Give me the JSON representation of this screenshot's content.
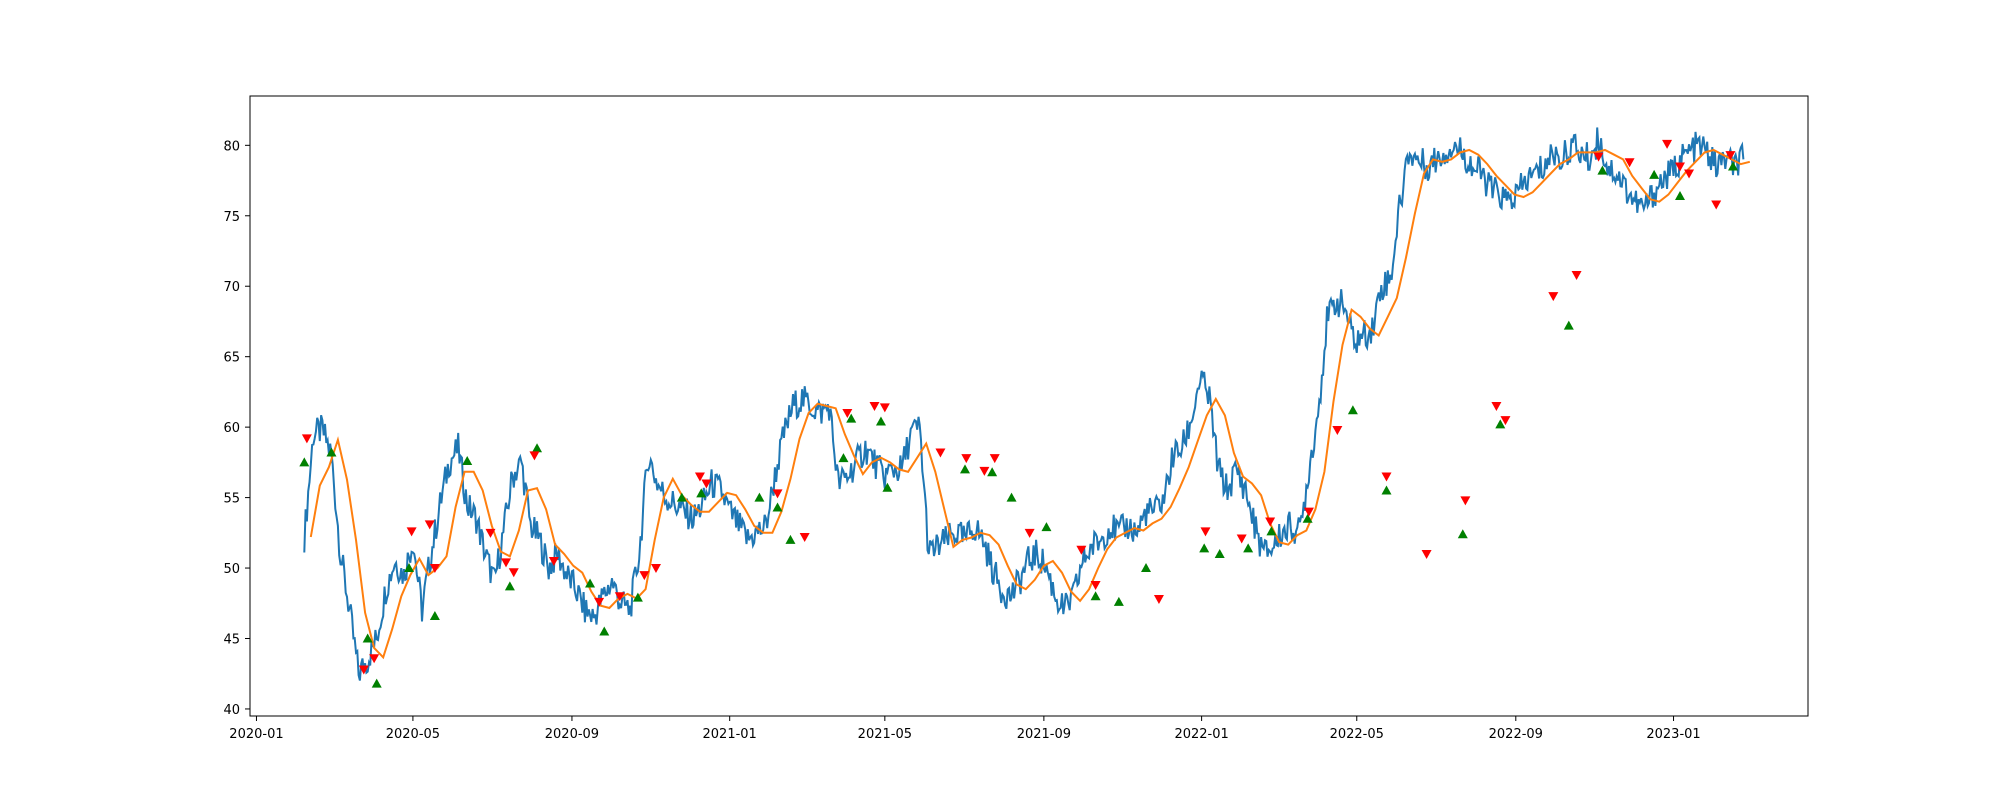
{
  "chart_data": {
    "type": "line",
    "title": "",
    "xlabel": "",
    "ylabel": "",
    "xlim": [
      "2019-12-27",
      "2023-04-15"
    ],
    "ylim": [
      39.5,
      83.5
    ],
    "grid": false,
    "legend": "none",
    "x_ticks": [
      "2020-01",
      "2020-05",
      "2020-09",
      "2021-01",
      "2021-05",
      "2021-09",
      "2022-01",
      "2022-05",
      "2022-09",
      "2023-01"
    ],
    "y_ticks": [
      40,
      45,
      50,
      55,
      60,
      65,
      70,
      75,
      80
    ],
    "colors": {
      "price": "#1f77b4",
      "moving_average": "#ff7f0e",
      "buy_marker": "#008000",
      "sell_marker": "#ff0000"
    },
    "series": [
      {
        "role": "price",
        "x": [
          "2020-02-07",
          "2020-02-14",
          "2020-02-21",
          "2020-02-28",
          "2020-03-06",
          "2020-03-13",
          "2020-03-20",
          "2020-03-27",
          "2020-04-03",
          "2020-04-10",
          "2020-04-17",
          "2020-04-24",
          "2020-05-01",
          "2020-05-08",
          "2020-05-15",
          "2020-05-22",
          "2020-05-29",
          "2020-06-05",
          "2020-06-12",
          "2020-06-19",
          "2020-06-26",
          "2020-07-03",
          "2020-07-10",
          "2020-07-17",
          "2020-07-24",
          "2020-07-31",
          "2020-08-07",
          "2020-08-14",
          "2020-08-21",
          "2020-08-28",
          "2020-09-04",
          "2020-09-11",
          "2020-09-18",
          "2020-09-25",
          "2020-10-02",
          "2020-10-09",
          "2020-10-16",
          "2020-10-23",
          "2020-10-30",
          "2020-11-06",
          "2020-11-13",
          "2020-11-20",
          "2020-11-27",
          "2020-12-04",
          "2020-12-11",
          "2020-12-18",
          "2020-12-25",
          "2021-01-01",
          "2021-01-08",
          "2021-01-15",
          "2021-01-22",
          "2021-01-29",
          "2021-02-05",
          "2021-02-12",
          "2021-02-19",
          "2021-02-26",
          "2021-03-05",
          "2021-03-12",
          "2021-03-19",
          "2021-03-26",
          "2021-04-02",
          "2021-04-09",
          "2021-04-16",
          "2021-04-23",
          "2021-04-30",
          "2021-05-07",
          "2021-05-14",
          "2021-05-21",
          "2021-05-28",
          "2021-06-04",
          "2021-06-11",
          "2021-06-18",
          "2021-06-25",
          "2021-07-02",
          "2021-07-09",
          "2021-07-16",
          "2021-07-23",
          "2021-07-30",
          "2021-08-06",
          "2021-08-13",
          "2021-08-20",
          "2021-08-27",
          "2021-09-03",
          "2021-09-10",
          "2021-09-17",
          "2021-09-24",
          "2021-10-01",
          "2021-10-08",
          "2021-10-15",
          "2021-10-22",
          "2021-10-29",
          "2021-11-05",
          "2021-11-12",
          "2021-11-19",
          "2021-11-26",
          "2021-12-03",
          "2021-12-10",
          "2021-12-17",
          "2021-12-24",
          "2021-12-31",
          "2022-01-07",
          "2022-01-14",
          "2022-01-21",
          "2022-01-28",
          "2022-02-04",
          "2022-02-11",
          "2022-02-18",
          "2022-02-25",
          "2022-03-04",
          "2022-03-11",
          "2022-03-18",
          "2022-03-25",
          "2022-04-01",
          "2022-04-08",
          "2022-04-15",
          "2022-04-22",
          "2022-04-29",
          "2022-05-06",
          "2022-05-13",
          "2022-05-20",
          "2022-05-27",
          "2022-06-03",
          "2022-06-10",
          "2022-06-17",
          "2022-06-24",
          "2022-07-01",
          "2022-07-08",
          "2022-07-15",
          "2022-07-22",
          "2022-07-29",
          "2022-08-05",
          "2022-08-12",
          "2022-08-19",
          "2022-08-26",
          "2022-09-02",
          "2022-09-09",
          "2022-09-16",
          "2022-09-23",
          "2022-09-30",
          "2022-10-07",
          "2022-10-14",
          "2022-10-21",
          "2022-10-28",
          "2022-11-04",
          "2022-11-11",
          "2022-11-18",
          "2022-11-25",
          "2022-12-02",
          "2022-12-09",
          "2022-12-16",
          "2022-12-23",
          "2022-12-30",
          "2023-01-06",
          "2023-01-13",
          "2023-01-20",
          "2023-01-27",
          "2023-02-03",
          "2023-02-10",
          "2023-02-17",
          "2023-02-24"
        ],
        "values": [
          52.2,
          59.5,
          59.8,
          58.0,
          51.0,
          47.0,
          42.5,
          43.5,
          45.0,
          48.5,
          50.5,
          49.5,
          52.0,
          47.0,
          51.0,
          54.5,
          57.5,
          58.5,
          54.5,
          53.5,
          51.0,
          49.0,
          52.5,
          56.5,
          57.5,
          53.0,
          52.0,
          50.0,
          51.0,
          49.5,
          48.5,
          47.0,
          46.5,
          48.0,
          49.0,
          47.5,
          47.0,
          51.0,
          58.0,
          56.0,
          55.0,
          54.5,
          54.0,
          53.5,
          54.5,
          56.0,
          55.5,
          54.0,
          53.0,
          52.0,
          52.5,
          53.0,
          56.5,
          59.5,
          61.5,
          62.0,
          61.5,
          61.0,
          61.5,
          56.0,
          56.5,
          57.5,
          58.5,
          57.5,
          56.5,
          57.0,
          57.0,
          59.5,
          60.0,
          51.0,
          51.5,
          52.0,
          52.5,
          52.0,
          53.0,
          52.0,
          50.0,
          48.5,
          48.0,
          49.0,
          50.5,
          51.0,
          50.0,
          48.0,
          47.0,
          48.0,
          50.5,
          51.5,
          52.0,
          53.0,
          52.5,
          53.0,
          52.5,
          54.0,
          54.0,
          55.0,
          58.0,
          58.5,
          60.5,
          63.5,
          62.0,
          57.0,
          55.5,
          57.0,
          55.5,
          53.0,
          51.0,
          51.5,
          52.5,
          53.0,
          52.5,
          57.0,
          61.0,
          67.5,
          69.0,
          68.5,
          66.0,
          66.5,
          67.0,
          70.0,
          70.5,
          75.5,
          79.5,
          79.0,
          78.5,
          79.0,
          79.5,
          80.0,
          79.5,
          78.5,
          78.0,
          77.0,
          76.5,
          76.0,
          76.5,
          77.5,
          78.0,
          78.5,
          79.5,
          79.0,
          80.0,
          79.5,
          79.0,
          80.5,
          78.5,
          78.0,
          77.0,
          76.0,
          75.5,
          76.5,
          77.5,
          78.0,
          79.0,
          79.5,
          80.0,
          79.5,
          78.5,
          79.0,
          78.5,
          79.0
        ],
        "step_days": 7
      }
    ],
    "buy_signals": [
      {
        "x": "2020-02-07",
        "y": 57.5
      },
      {
        "x": "2020-02-28",
        "y": 58.2
      },
      {
        "x": "2020-03-27",
        "y": 45.0
      },
      {
        "x": "2020-04-03",
        "y": 41.8
      },
      {
        "x": "2020-04-28",
        "y": 50.0
      },
      {
        "x": "2020-05-18",
        "y": 46.6
      },
      {
        "x": "2020-06-12",
        "y": 57.6
      },
      {
        "x": "2020-07-15",
        "y": 48.7
      },
      {
        "x": "2020-08-05",
        "y": 58.5
      },
      {
        "x": "2020-09-15",
        "y": 48.9
      },
      {
        "x": "2020-09-26",
        "y": 45.5
      },
      {
        "x": "2020-10-22",
        "y": 47.9
      },
      {
        "x": "2020-11-25",
        "y": 55.0
      },
      {
        "x": "2020-12-10",
        "y": 55.3
      },
      {
        "x": "2021-01-24",
        "y": 55.0
      },
      {
        "x": "2021-02-07",
        "y": 54.3
      },
      {
        "x": "2021-02-17",
        "y": 52.0
      },
      {
        "x": "2021-03-30",
        "y": 57.8
      },
      {
        "x": "2021-04-05",
        "y": 60.6
      },
      {
        "x": "2021-04-28",
        "y": 60.4
      },
      {
        "x": "2021-05-03",
        "y": 55.7
      },
      {
        "x": "2021-07-02",
        "y": 57.0
      },
      {
        "x": "2021-07-23",
        "y": 56.8
      },
      {
        "x": "2021-08-07",
        "y": 55.0
      },
      {
        "x": "2021-09-03",
        "y": 52.9
      },
      {
        "x": "2021-10-11",
        "y": 48.0
      },
      {
        "x": "2021-10-29",
        "y": 47.6
      },
      {
        "x": "2021-11-19",
        "y": 50.0
      },
      {
        "x": "2022-01-03",
        "y": 51.4
      },
      {
        "x": "2022-01-15",
        "y": 51.0
      },
      {
        "x": "2022-02-06",
        "y": 51.4
      },
      {
        "x": "2022-02-24",
        "y": 52.6
      },
      {
        "x": "2022-03-24",
        "y": 53.5
      },
      {
        "x": "2022-04-28",
        "y": 61.2
      },
      {
        "x": "2022-05-24",
        "y": 55.5
      },
      {
        "x": "2022-07-22",
        "y": 52.4
      },
      {
        "x": "2022-08-20",
        "y": 60.2
      },
      {
        "x": "2022-10-12",
        "y": 67.2
      },
      {
        "x": "2022-11-07",
        "y": 78.2
      },
      {
        "x": "2022-12-17",
        "y": 77.9
      },
      {
        "x": "2023-01-06",
        "y": 76.4
      },
      {
        "x": "2023-02-16",
        "y": 78.5
      }
    ],
    "sell_signals": [
      {
        "x": "2020-02-09",
        "y": 59.2
      },
      {
        "x": "2020-03-24",
        "y": 42.8
      },
      {
        "x": "2020-04-01",
        "y": 43.6
      },
      {
        "x": "2020-04-30",
        "y": 52.6
      },
      {
        "x": "2020-05-14",
        "y": 53.1
      },
      {
        "x": "2020-05-18",
        "y": 50.0
      },
      {
        "x": "2020-06-30",
        "y": 52.5
      },
      {
        "x": "2020-07-12",
        "y": 50.4
      },
      {
        "x": "2020-07-18",
        "y": 49.7
      },
      {
        "x": "2020-08-03",
        "y": 58.0
      },
      {
        "x": "2020-08-18",
        "y": 50.5
      },
      {
        "x": "2020-09-22",
        "y": 47.6
      },
      {
        "x": "2020-10-08",
        "y": 48.0
      },
      {
        "x": "2020-10-27",
        "y": 49.5
      },
      {
        "x": "2020-11-05",
        "y": 50.0
      },
      {
        "x": "2020-12-09",
        "y": 56.5
      },
      {
        "x": "2020-12-14",
        "y": 56.0
      },
      {
        "x": "2021-02-07",
        "y": 55.3
      },
      {
        "x": "2021-02-28",
        "y": 52.2
      },
      {
        "x": "2021-04-02",
        "y": 61.0
      },
      {
        "x": "2021-04-23",
        "y": 61.5
      },
      {
        "x": "2021-05-01",
        "y": 61.4
      },
      {
        "x": "2021-06-13",
        "y": 58.2
      },
      {
        "x": "2021-07-03",
        "y": 57.8
      },
      {
        "x": "2021-07-17",
        "y": 56.9
      },
      {
        "x": "2021-07-25",
        "y": 57.8
      },
      {
        "x": "2021-08-21",
        "y": 52.5
      },
      {
        "x": "2021-09-30",
        "y": 51.3
      },
      {
        "x": "2021-10-11",
        "y": 48.8
      },
      {
        "x": "2021-11-29",
        "y": 47.8
      },
      {
        "x": "2022-01-04",
        "y": 52.6
      },
      {
        "x": "2022-02-01",
        "y": 52.1
      },
      {
        "x": "2022-02-23",
        "y": 53.3
      },
      {
        "x": "2022-03-25",
        "y": 54.0
      },
      {
        "x": "2022-04-16",
        "y": 59.8
      },
      {
        "x": "2022-05-24",
        "y": 56.5
      },
      {
        "x": "2022-06-24",
        "y": 51.0
      },
      {
        "x": "2022-07-24",
        "y": 54.8
      },
      {
        "x": "2022-08-17",
        "y": 61.5
      },
      {
        "x": "2022-08-24",
        "y": 60.5
      },
      {
        "x": "2022-09-30",
        "y": 69.3
      },
      {
        "x": "2022-10-18",
        "y": 70.8
      },
      {
        "x": "2022-11-04",
        "y": 79.2
      },
      {
        "x": "2022-11-28",
        "y": 78.8
      },
      {
        "x": "2022-12-27",
        "y": 80.1
      },
      {
        "x": "2023-01-06",
        "y": 78.5
      },
      {
        "x": "2023-01-13",
        "y": 78.0
      },
      {
        "x": "2023-02-03",
        "y": 75.8
      },
      {
        "x": "2023-02-14",
        "y": 79.3
      }
    ]
  }
}
